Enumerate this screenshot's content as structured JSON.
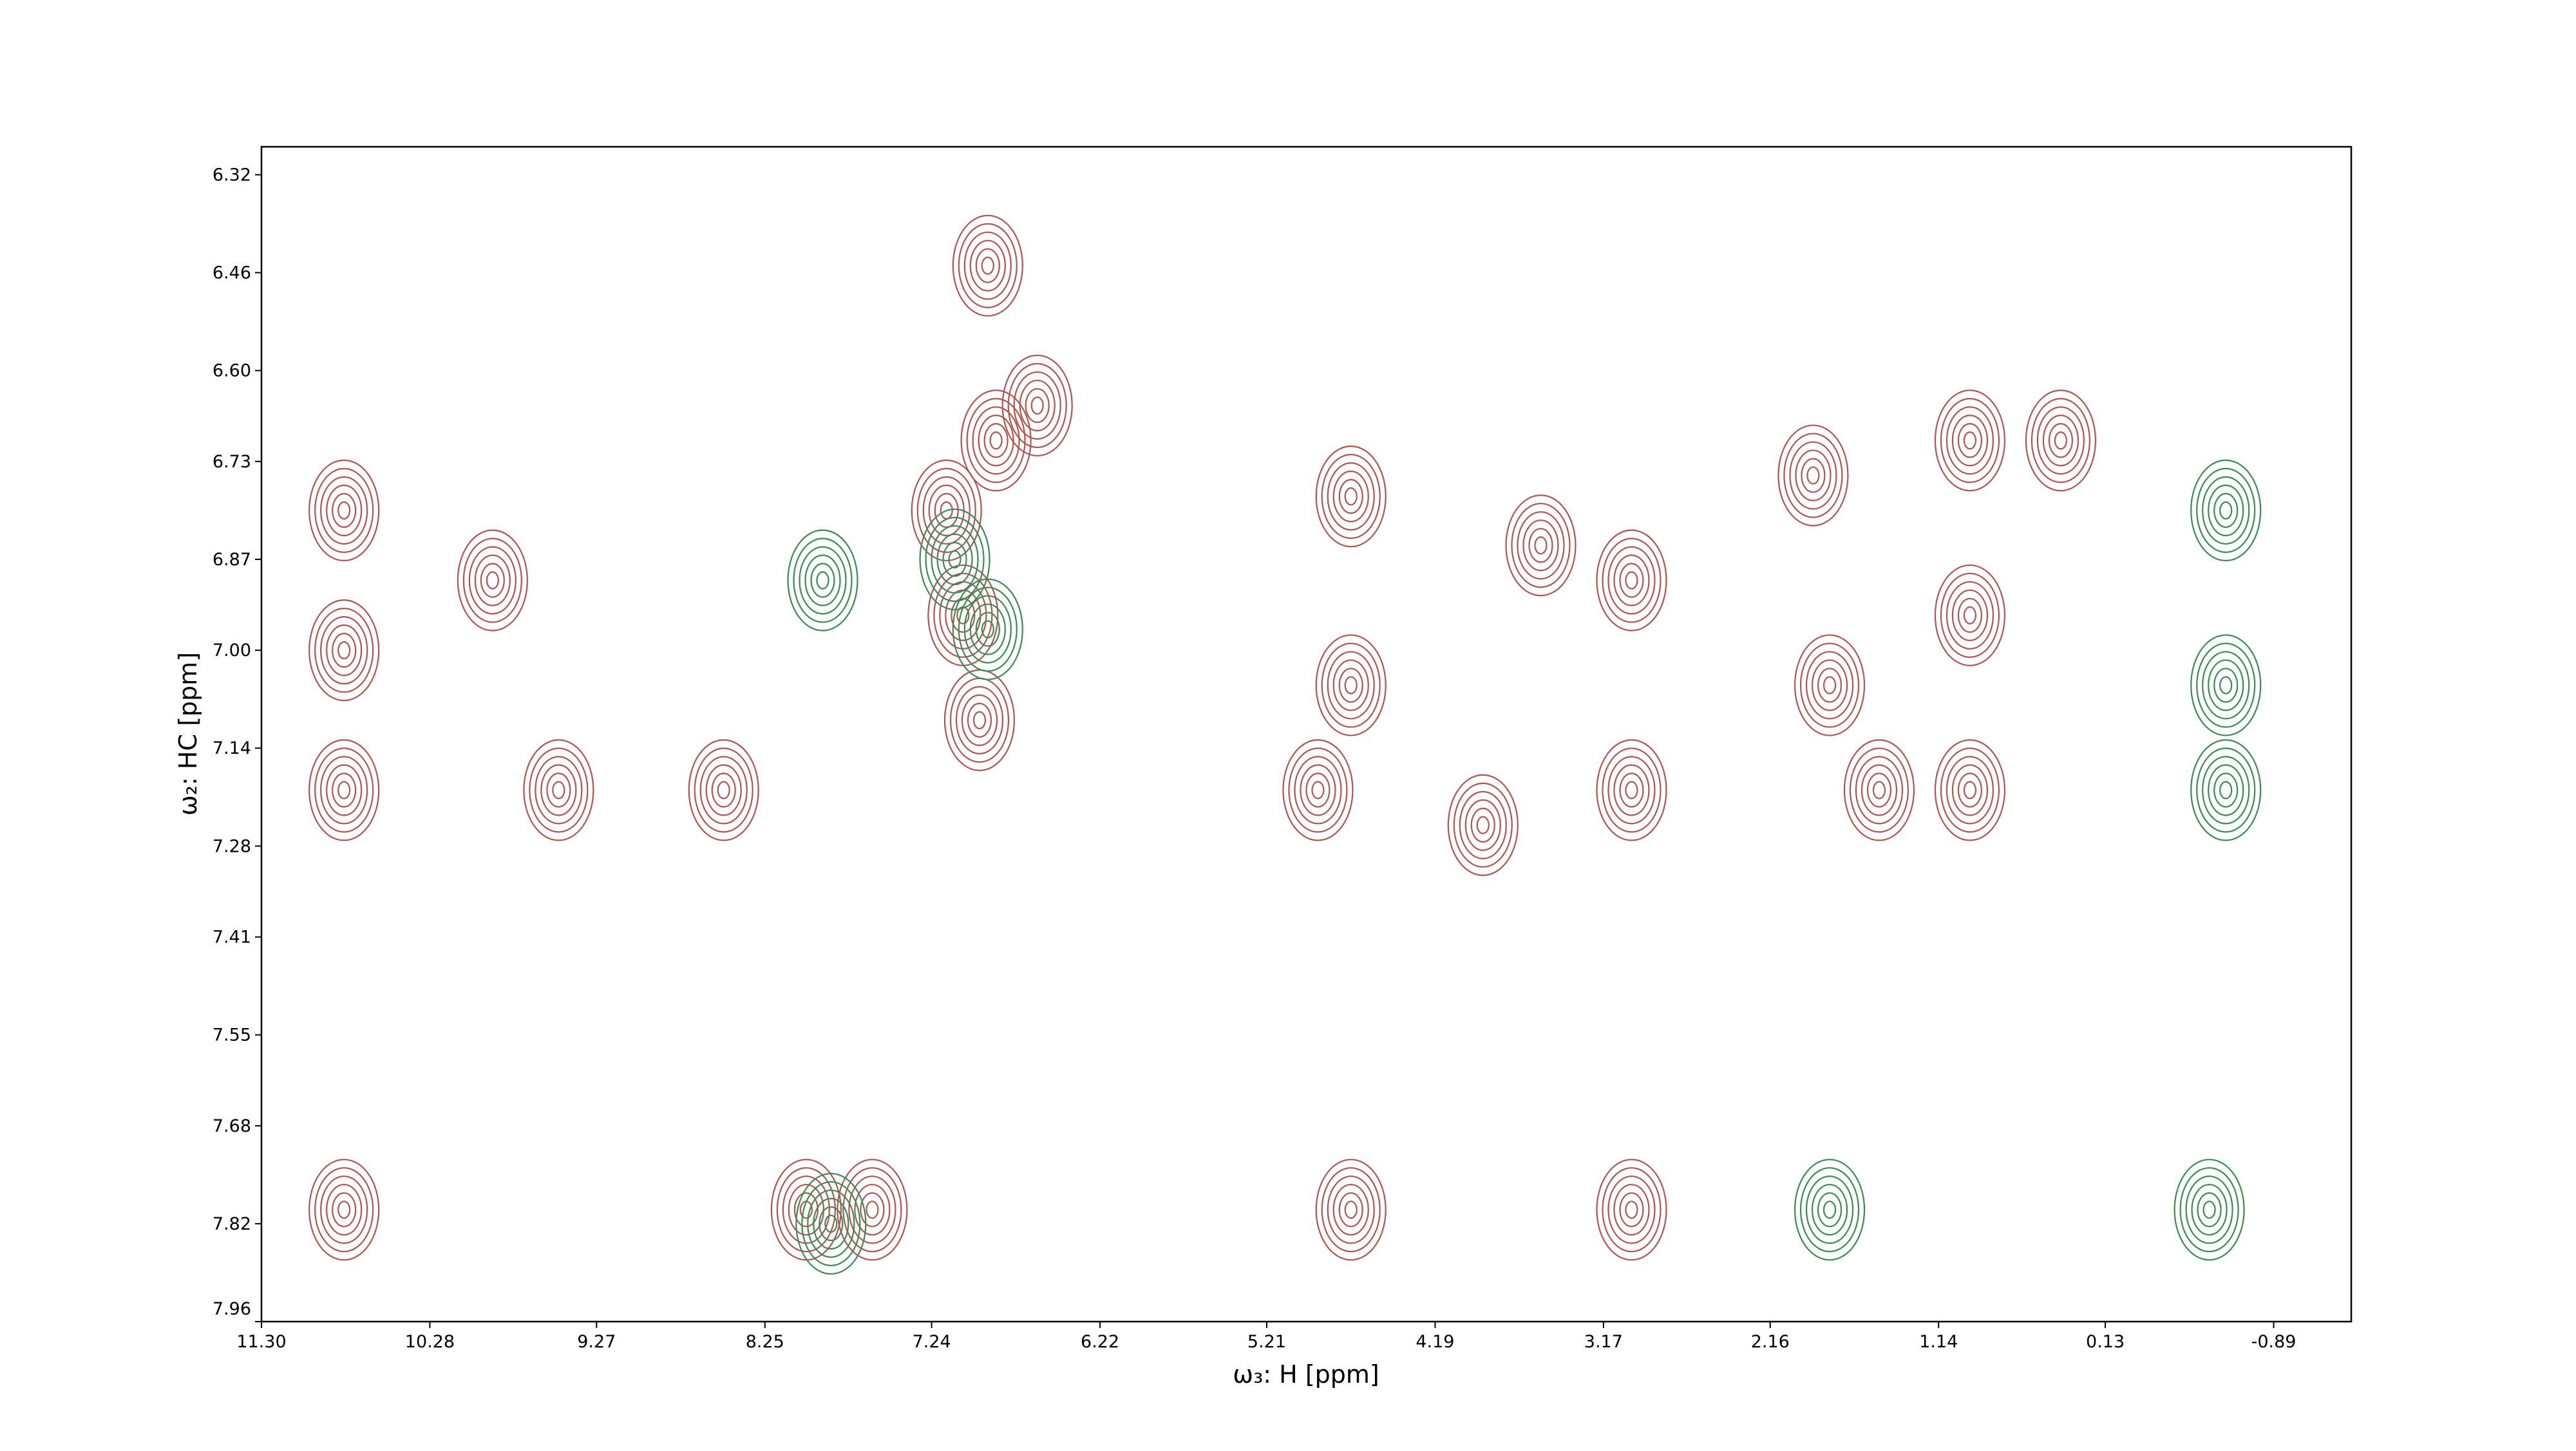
{
  "chart_data": {
    "type": "contour",
    "x_label": "ω₃: H [ppm]",
    "y_label": "ω₂: HC [ppm]",
    "xlim": [
      11.3,
      -1.36
    ],
    "xticks": [
      {
        "value": 11.3,
        "label": "11.30"
      },
      10.28,
      9.27,
      8.25,
      7.24,
      6.22,
      5.21,
      4.19,
      3.17,
      2.16,
      1.14,
      0.13,
      -0.89
    ],
    "ylim": [
      6.28,
      7.96
    ],
    "yticks": [
      6.32,
      6.46,
      {
        "value": 6.6,
        "label": "6.60"
      },
      6.73,
      6.87,
      {
        "value": 7.0,
        "label": "7.00"
      },
      7.14,
      7.28,
      7.41,
      7.55,
      7.68,
      7.82,
      7.96
    ],
    "series": [
      {
        "color": "#b0554f",
        "x": [
          7.15,
          7.05,
          6.95,
          6.85,
          6.6,
          4.7,
          4.7,
          4.9,
          3.9,
          3.55,
          3.0,
          3.0,
          1.9,
          1.8,
          1.5,
          0.95,
          0.95,
          0.95,
          0.4,
          8.0,
          4.7,
          9.5,
          8.5,
          3.0,
          7.6,
          9.9,
          10.8,
          10.8,
          10.8,
          10.8,
          6.9
        ],
        "y": [
          6.8,
          6.95,
          7.1,
          6.7,
          6.65,
          6.78,
          7.05,
          7.2,
          7.25,
          6.85,
          7.2,
          6.9,
          6.75,
          7.05,
          7.2,
          6.7,
          6.95,
          7.2,
          6.7,
          7.8,
          7.8,
          7.2,
          7.2,
          7.8,
          7.8,
          6.9,
          6.8,
          7.0,
          7.2,
          7.8,
          6.45
        ]
      },
      {
        "color": "#3d8a50",
        "x": [
          7.1,
          6.9,
          7.85,
          -0.6,
          -0.6,
          -0.6,
          -0.5,
          1.8,
          7.9
        ],
        "y": [
          6.87,
          6.97,
          7.82,
          6.8,
          7.05,
          7.2,
          7.8,
          7.8,
          6.9
        ]
      }
    ]
  }
}
